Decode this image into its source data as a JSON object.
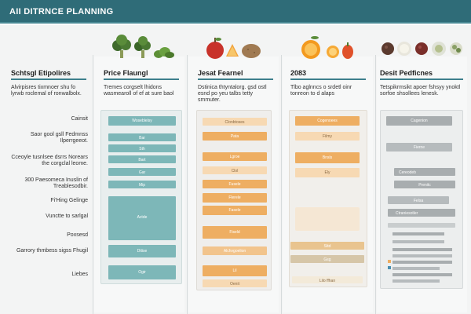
{
  "header": {
    "title": "AII DITRNCE PLANNING"
  },
  "colors": {
    "header": "#2f6c78",
    "teal": "#7db7b8",
    "orange": "#eeae62",
    "orange_light": "#f7d9b3",
    "grey": "#a8adaf"
  },
  "columns": [
    {
      "heading": "Schtsgl Etipolires",
      "description": "Alvirpisres tixmnoer shu fo lyrwb roclemal of ronwalbolx.",
      "row_labels": [
        "Cainsit",
        "Saor gool gsll Fedmnss Ilperrgeeot.",
        "Cceoyle tusnlsee dsrrs Norears the corgclal leome.",
        "300 Paesomeca Inuslin of Treablesodbir.",
        "Fi'Hing Gelinge",
        "Vunctte to sarlgal",
        "Poxsesd",
        "Garrory thmbess sigss Fhugil",
        "Liebes"
      ]
    },
    {
      "heading": "Price Flaungl",
      "icons": [
        "broccoli-icon",
        "broccoli-icon",
        "leafy-greens-icon"
      ],
      "description": "Tremes corgselt lhidons wasmearoll of ef at sure baol",
      "bars": [
        "Woseblelsy",
        "Bar",
        "Sth",
        "Bart",
        "Gar",
        "Mip",
        "Actde",
        "Ditise",
        "Ogir"
      ]
    },
    {
      "heading": "Jesat Fearnel",
      "icons": [
        "apple-icon",
        "orange-slice-icon",
        "potato-icon"
      ],
      "description": "Dstinica thtyntalorg. gsd ostl esnd po yeu talbs tetty smmuter.",
      "bars": [
        "Clonbtoses",
        "Pata",
        "Lgroe",
        "Clol",
        "Fusele",
        "Flerele",
        "Fasele",
        "Fiseld",
        "Alchvgoelion",
        "Lil",
        "Oenit"
      ]
    },
    {
      "heading": "2083",
      "icons": [
        "orange-icon",
        "orange-icon",
        "pepper-icon"
      ],
      "description": "Tlbo aglnncs o srdetl oinr tonreon to d alaps",
      "bars": [
        "Cogenoees",
        "Filmy",
        "Bnsls",
        "Ely",
        "Sttd",
        "Gsg",
        "Lilo ffhan"
      ]
    },
    {
      "heading": "Desit Pedficnes",
      "icons": [
        "berry-icon",
        "bowl-icon",
        "berry-icon",
        "dish-icon",
        "cauliflower-icon"
      ],
      "description": "Tetspikrmsikt apoer fshsyy ynoktl sorfoe shsollees lenesk.",
      "bars": [
        "Cagenion",
        "Fierne",
        "Cereodeb",
        "Prenitc",
        "Felsa",
        "Ctraniesotler"
      ]
    }
  ]
}
